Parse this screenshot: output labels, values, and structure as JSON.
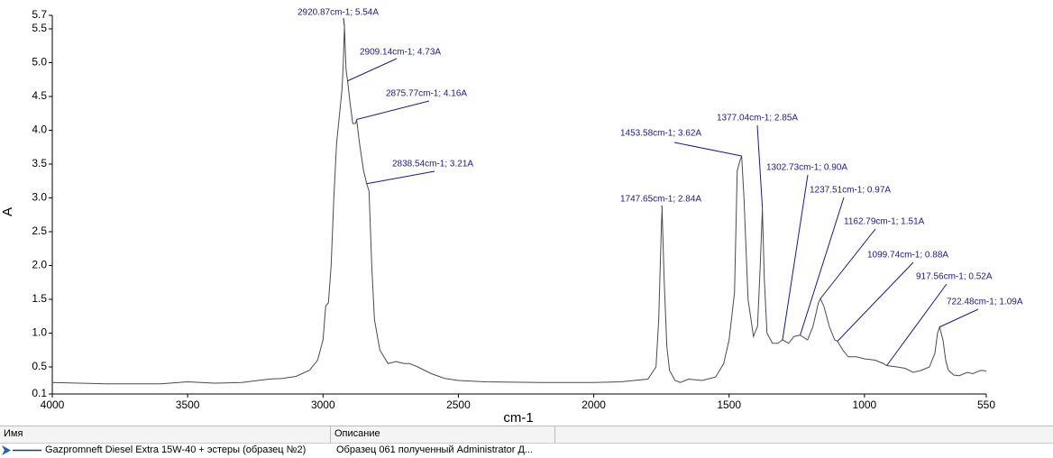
{
  "chart_data": {
    "type": "line",
    "x_label": "cm-1",
    "y_label": "A",
    "color": "#4a4a4a",
    "annotation_color": "#1a1a8c",
    "xlim": [
      4000,
      550
    ],
    "xticks": [
      4000,
      3500,
      3000,
      2500,
      2000,
      1500,
      1000,
      550
    ],
    "ylim": [
      0.1,
      5.7
    ],
    "yticks": [
      0.1,
      0.5,
      {
        "value": 1,
        "label": "1.0"
      },
      1.5,
      {
        "value": 2,
        "label": "2.0"
      },
      2.5,
      {
        "value": 3,
        "label": "3.0"
      },
      3.5,
      {
        "value": 4,
        "label": "4.0"
      },
      4.5,
      {
        "value": 5,
        "label": "5.0"
      },
      5.5,
      5.7
    ],
    "x": [
      4000,
      3800,
      3600,
      3500,
      3400,
      3300,
      3200,
      3150,
      3100,
      3050,
      3020,
      3000,
      2990,
      2980,
      2970,
      2960,
      2950,
      2940,
      2930,
      2925,
      2920.87,
      2915,
      2909.14,
      2900,
      2890,
      2880,
      2875.77,
      2865,
      2850,
      2838.54,
      2830,
      2820,
      2810,
      2790,
      2760,
      2730,
      2700,
      2680,
      2650,
      2600,
      2550,
      2500,
      2400,
      2200,
      2000,
      1900,
      1800,
      1770,
      1760,
      1750,
      1747.65,
      1740,
      1730,
      1720,
      1700,
      1680,
      1650,
      1600,
      1550,
      1520,
      1500,
      1480,
      1470,
      1460,
      1453.58,
      1445,
      1430,
      1410,
      1395,
      1385,
      1377.04,
      1370,
      1360,
      1340,
      1320,
      1302.73,
      1280,
      1260,
      1237.51,
      1210,
      1190,
      1170,
      1162.79,
      1150,
      1130,
      1110,
      1099.74,
      1080,
      1060,
      1030,
      1000,
      960,
      930,
      917.56,
      880,
      850,
      820,
      790,
      760,
      740,
      730,
      722.48,
      710,
      700,
      690,
      670,
      650,
      620,
      600,
      570,
      550
    ],
    "values": [
      0.27,
      0.25,
      0.25,
      0.28,
      0.26,
      0.27,
      0.32,
      0.33,
      0.36,
      0.45,
      0.6,
      0.9,
      1.4,
      1.45,
      2.0,
      3.0,
      3.8,
      4.2,
      4.6,
      5.0,
      5.54,
      4.9,
      4.73,
      4.4,
      4.1,
      4.1,
      4.16,
      3.8,
      3.4,
      3.21,
      3.1,
      2.0,
      1.2,
      0.75,
      0.55,
      0.58,
      0.55,
      0.55,
      0.5,
      0.4,
      0.33,
      0.3,
      0.28,
      0.27,
      0.27,
      0.28,
      0.32,
      0.5,
      1.2,
      2.6,
      2.84,
      1.8,
      0.8,
      0.45,
      0.3,
      0.27,
      0.32,
      0.3,
      0.35,
      0.55,
      0.9,
      1.6,
      3.4,
      3.55,
      3.62,
      3.0,
      1.5,
      0.95,
      1.1,
      2.0,
      2.85,
      1.8,
      1.0,
      0.85,
      0.85,
      0.9,
      0.85,
      0.95,
      0.97,
      0.9,
      1.1,
      1.45,
      1.51,
      1.4,
      1.1,
      0.9,
      0.88,
      0.75,
      0.65,
      0.65,
      0.62,
      0.6,
      0.55,
      0.52,
      0.5,
      0.48,
      0.42,
      0.45,
      0.5,
      0.7,
      1.0,
      1.09,
      0.9,
      0.6,
      0.45,
      0.38,
      0.37,
      0.42,
      0.4,
      0.45,
      0.44
    ],
    "annotations": [
      {
        "x": 2920.87,
        "y": 5.54,
        "label": "2920.87cm-1; 5.54A"
      },
      {
        "x": 2909.14,
        "y": 4.73,
        "label": "2909.14cm-1; 4.73A"
      },
      {
        "x": 2875.77,
        "y": 4.16,
        "label": "2875.77cm-1; 4.16A"
      },
      {
        "x": 2838.54,
        "y": 3.21,
        "label": "2838.54cm-1; 3.21A"
      },
      {
        "x": 1747.65,
        "y": 2.84,
        "label": "1747.65cm-1; 2.84A"
      },
      {
        "x": 1453.58,
        "y": 3.62,
        "label": "1453.58cm-1; 3.62A"
      },
      {
        "x": 1377.04,
        "y": 2.85,
        "label": "1377.04cm-1; 2.85A"
      },
      {
        "x": 1302.73,
        "y": 0.9,
        "label": "1302.73cm-1; 0.90A"
      },
      {
        "x": 1237.51,
        "y": 0.97,
        "label": "1237.51cm-1; 0.97A"
      },
      {
        "x": 1162.79,
        "y": 1.51,
        "label": "1162.79cm-1; 1.51A"
      },
      {
        "x": 1099.74,
        "y": 0.88,
        "label": "1099.74cm-1; 0.88A"
      },
      {
        "x": 917.56,
        "y": 0.52,
        "label": "917.56cm-1; 0.52A"
      },
      {
        "x": 722.48,
        "y": 1.09,
        "label": "722.48cm-1; 1.09A"
      }
    ]
  },
  "table": {
    "columns": [
      "Имя",
      "Описание"
    ],
    "rows": [
      [
        "Gazpromneft Diesel Extra 15W-40 + эстеры (образец №2)",
        "Образец 061 полученный Administrator Д..."
      ]
    ]
  }
}
